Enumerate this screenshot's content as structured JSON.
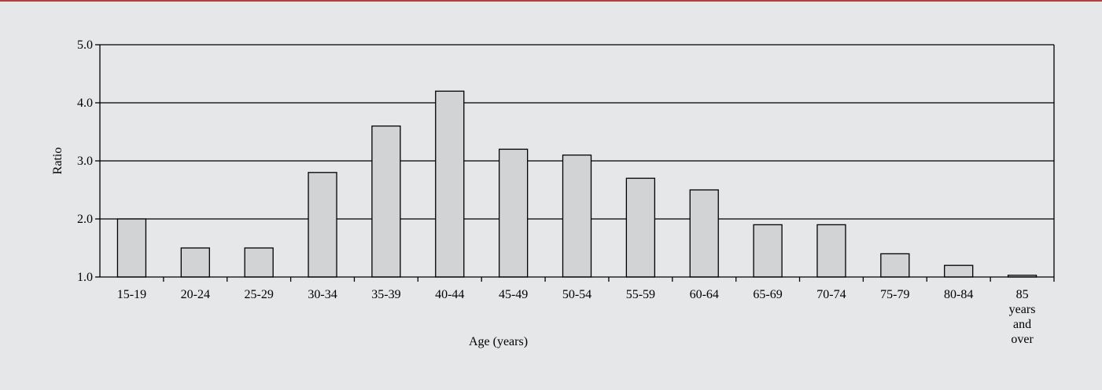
{
  "colors": {
    "top_rule": "#b0413e",
    "background": "#e6e7e8",
    "bar_fill": "#d1d3d4",
    "bar_stroke": "#000000"
  },
  "chart_data": {
    "type": "bar",
    "title": "",
    "xlabel": "Age (years)",
    "ylabel": "Ratio",
    "ylim": [
      1.0,
      5.0
    ],
    "yticks": [
      "1.0",
      "2.0",
      "3.0",
      "4.0",
      "5.0"
    ],
    "grid": true,
    "categories": [
      "15-19",
      "20-24",
      "25-29",
      "30-34",
      "35-39",
      "40-44",
      "45-49",
      "50-54",
      "55-59",
      "60-64",
      "65-69",
      "70-74",
      "75-79",
      "80-84",
      "85 years and over"
    ],
    "values": [
      2.0,
      1.5,
      1.5,
      2.8,
      3.6,
      4.2,
      3.2,
      3.1,
      2.7,
      2.5,
      1.9,
      1.9,
      1.4,
      1.2,
      1.03
    ]
  }
}
